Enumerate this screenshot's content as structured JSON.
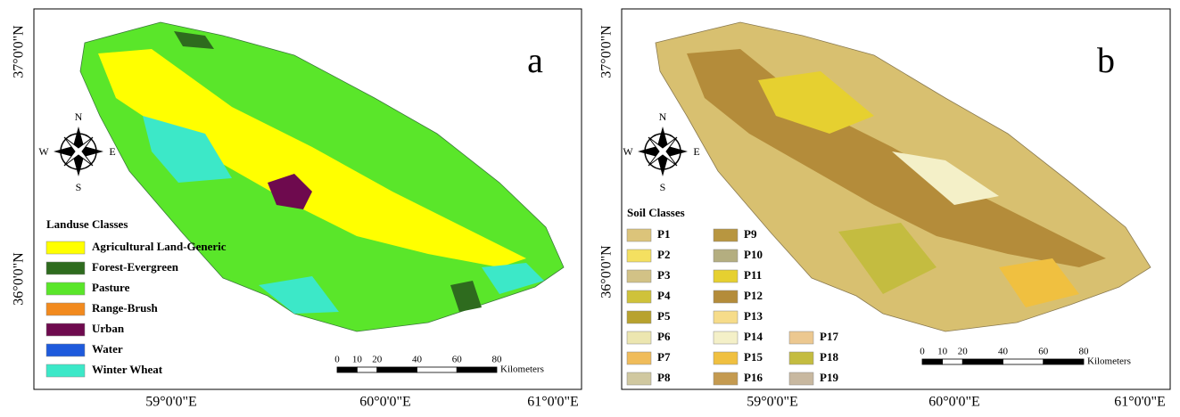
{
  "panels": [
    {
      "label": "a",
      "latitude_labels": [
        "37°0'0\"N",
        "36°0'0\"N"
      ],
      "longitude_labels": [
        "59°0'0\"E",
        "60°0'0\"E",
        "61°0'0\"E"
      ],
      "compass": {
        "n": "N",
        "s": "S",
        "e": "E",
        "w": "W"
      },
      "legend": {
        "title": "Landuse Classes",
        "items": [
          {
            "label": "Agricultural Land-Generic",
            "color": "#ffff00"
          },
          {
            "label": "Forest-Evergreen",
            "color": "#2e6b1e"
          },
          {
            "label": "Pasture",
            "color": "#5ae62a"
          },
          {
            "label": "Range-Brush",
            "color": "#f28a1e"
          },
          {
            "label": "Urban",
            "color": "#6e0a4e"
          },
          {
            "label": "Water",
            "color": "#1e5adc"
          },
          {
            "label": "Winter Wheat",
            "color": "#3ce8c8"
          }
        ]
      },
      "scale": {
        "ticks": [
          0,
          10,
          20,
          40,
          60,
          80
        ],
        "unit": "Kilometers"
      }
    },
    {
      "label": "b",
      "latitude_labels": [
        "37°0'0\"N",
        "36°0'0\"N"
      ],
      "longitude_labels": [
        "59°0'0\"E",
        "60°0'0\"E",
        "61°0'0\"E"
      ],
      "compass": {
        "n": "N",
        "s": "S",
        "e": "E",
        "w": "W"
      },
      "legend": {
        "title": "Soil Classes",
        "items": [
          {
            "label": "P1",
            "color": "#dcc47a"
          },
          {
            "label": "P2",
            "color": "#f4e060"
          },
          {
            "label": "P3",
            "color": "#d2c286"
          },
          {
            "label": "P4",
            "color": "#cfc23a"
          },
          {
            "label": "P5",
            "color": "#b8a22e"
          },
          {
            "label": "P6",
            "color": "#ece6b0"
          },
          {
            "label": "P7",
            "color": "#f0bc5a"
          },
          {
            "label": "P8",
            "color": "#d0c8a0"
          },
          {
            "label": "P9",
            "color": "#b89640"
          },
          {
            "label": "P10",
            "color": "#b4ae80"
          },
          {
            "label": "P11",
            "color": "#e6d030"
          },
          {
            "label": "P12",
            "color": "#b48c3a"
          },
          {
            "label": "P13",
            "color": "#f6dc8a"
          },
          {
            "label": "P14",
            "color": "#f4f0c8"
          },
          {
            "label": "P15",
            "color": "#f0c040"
          },
          {
            "label": "P16",
            "color": "#c49a50"
          },
          {
            "label": "P17",
            "color": "#ecc890"
          },
          {
            "label": "P18",
            "color": "#c4bc40"
          },
          {
            "label": "P19",
            "color": "#c8b8a0"
          }
        ]
      },
      "scale": {
        "ticks": [
          0,
          10,
          20,
          40,
          60,
          80
        ],
        "unit": "Kilometers"
      }
    }
  ]
}
